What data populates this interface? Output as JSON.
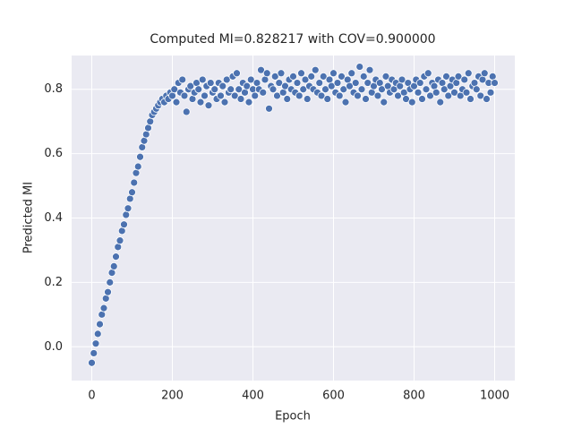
{
  "chart_data": {
    "type": "scatter",
    "title": "Computed MI=0.828217 with COV=0.900000",
    "x_label": "Epoch",
    "y_label": "Predicted MI",
    "x": [
      0,
      5,
      10,
      15,
      20,
      25,
      30,
      35,
      40,
      45,
      50,
      55,
      60,
      65,
      70,
      75,
      80,
      85,
      90,
      95,
      100,
      105,
      110,
      115,
      120,
      125,
      130,
      135,
      140,
      145,
      150,
      155,
      160,
      165,
      170,
      175,
      180,
      185,
      190,
      195,
      200,
      205,
      210,
      215,
      220,
      225,
      230,
      235,
      240,
      245,
      250,
      255,
      260,
      265,
      270,
      275,
      280,
      285,
      290,
      295,
      300,
      305,
      310,
      315,
      320,
      325,
      330,
      335,
      340,
      345,
      350,
      355,
      360,
      365,
      370,
      375,
      380,
      385,
      390,
      395,
      400,
      405,
      410,
      415,
      420,
      425,
      430,
      435,
      440,
      445,
      450,
      455,
      460,
      465,
      470,
      475,
      480,
      485,
      490,
      495,
      500,
      505,
      510,
      515,
      520,
      525,
      530,
      535,
      540,
      545,
      550,
      555,
      560,
      565,
      570,
      575,
      580,
      585,
      590,
      595,
      600,
      605,
      610,
      615,
      620,
      625,
      630,
      635,
      640,
      645,
      650,
      655,
      660,
      665,
      670,
      675,
      680,
      685,
      690,
      695,
      700,
      705,
      710,
      715,
      720,
      725,
      730,
      735,
      740,
      745,
      750,
      755,
      760,
      765,
      770,
      775,
      780,
      785,
      790,
      795,
      800,
      805,
      810,
      815,
      820,
      825,
      830,
      835,
      840,
      845,
      850,
      855,
      860,
      865,
      870,
      875,
      880,
      885,
      890,
      895,
      900,
      905,
      910,
      915,
      920,
      925,
      930,
      935,
      940,
      945,
      950,
      955,
      960,
      965,
      970,
      975,
      980,
      985,
      990,
      995,
      1000
    ],
    "values": [
      -0.05,
      -0.02,
      0.01,
      0.04,
      0.07,
      0.1,
      0.12,
      0.15,
      0.17,
      0.2,
      0.23,
      0.25,
      0.28,
      0.31,
      0.33,
      0.36,
      0.38,
      0.41,
      0.43,
      0.46,
      0.48,
      0.51,
      0.54,
      0.56,
      0.59,
      0.62,
      0.64,
      0.66,
      0.68,
      0.7,
      0.72,
      0.73,
      0.74,
      0.75,
      0.76,
      0.77,
      0.76,
      0.78,
      0.77,
      0.79,
      0.78,
      0.8,
      0.76,
      0.82,
      0.79,
      0.83,
      0.78,
      0.73,
      0.8,
      0.81,
      0.77,
      0.79,
      0.82,
      0.8,
      0.76,
      0.83,
      0.78,
      0.81,
      0.75,
      0.82,
      0.79,
      0.8,
      0.77,
      0.82,
      0.78,
      0.81,
      0.76,
      0.83,
      0.79,
      0.8,
      0.84,
      0.78,
      0.85,
      0.8,
      0.77,
      0.82,
      0.79,
      0.81,
      0.76,
      0.83,
      0.8,
      0.78,
      0.82,
      0.8,
      0.86,
      0.79,
      0.83,
      0.85,
      0.74,
      0.81,
      0.8,
      0.84,
      0.78,
      0.82,
      0.85,
      0.79,
      0.81,
      0.77,
      0.83,
      0.8,
      0.84,
      0.79,
      0.82,
      0.78,
      0.85,
      0.8,
      0.83,
      0.77,
      0.81,
      0.84,
      0.8,
      0.86,
      0.79,
      0.82,
      0.78,
      0.84,
      0.8,
      0.77,
      0.83,
      0.81,
      0.85,
      0.79,
      0.82,
      0.78,
      0.84,
      0.8,
      0.76,
      0.83,
      0.81,
      0.85,
      0.79,
      0.82,
      0.78,
      0.87,
      0.8,
      0.84,
      0.77,
      0.82,
      0.86,
      0.79,
      0.81,
      0.83,
      0.78,
      0.82,
      0.8,
      0.76,
      0.84,
      0.81,
      0.79,
      0.83,
      0.8,
      0.82,
      0.78,
      0.81,
      0.83,
      0.79,
      0.77,
      0.82,
      0.8,
      0.76,
      0.81,
      0.83,
      0.79,
      0.82,
      0.77,
      0.84,
      0.8,
      0.85,
      0.78,
      0.82,
      0.81,
      0.79,
      0.83,
      0.76,
      0.82,
      0.8,
      0.84,
      0.78,
      0.81,
      0.83,
      0.79,
      0.82,
      0.84,
      0.78,
      0.8,
      0.83,
      0.79,
      0.85,
      0.77,
      0.81,
      0.82,
      0.8,
      0.84,
      0.78,
      0.83,
      0.85,
      0.77,
      0.82,
      0.79,
      0.84,
      0.82
    ],
    "color": "#4c72b0",
    "xlim": [
      -50,
      1050
    ],
    "xticks": [
      0,
      200,
      400,
      600,
      800,
      1000
    ],
    "ylim": [
      -0.105,
      0.905
    ],
    "yticks": [
      {
        "value": 0,
        "label": "0.0"
      },
      0.2,
      0.4,
      0.6,
      0.8
    ],
    "grid": true
  }
}
